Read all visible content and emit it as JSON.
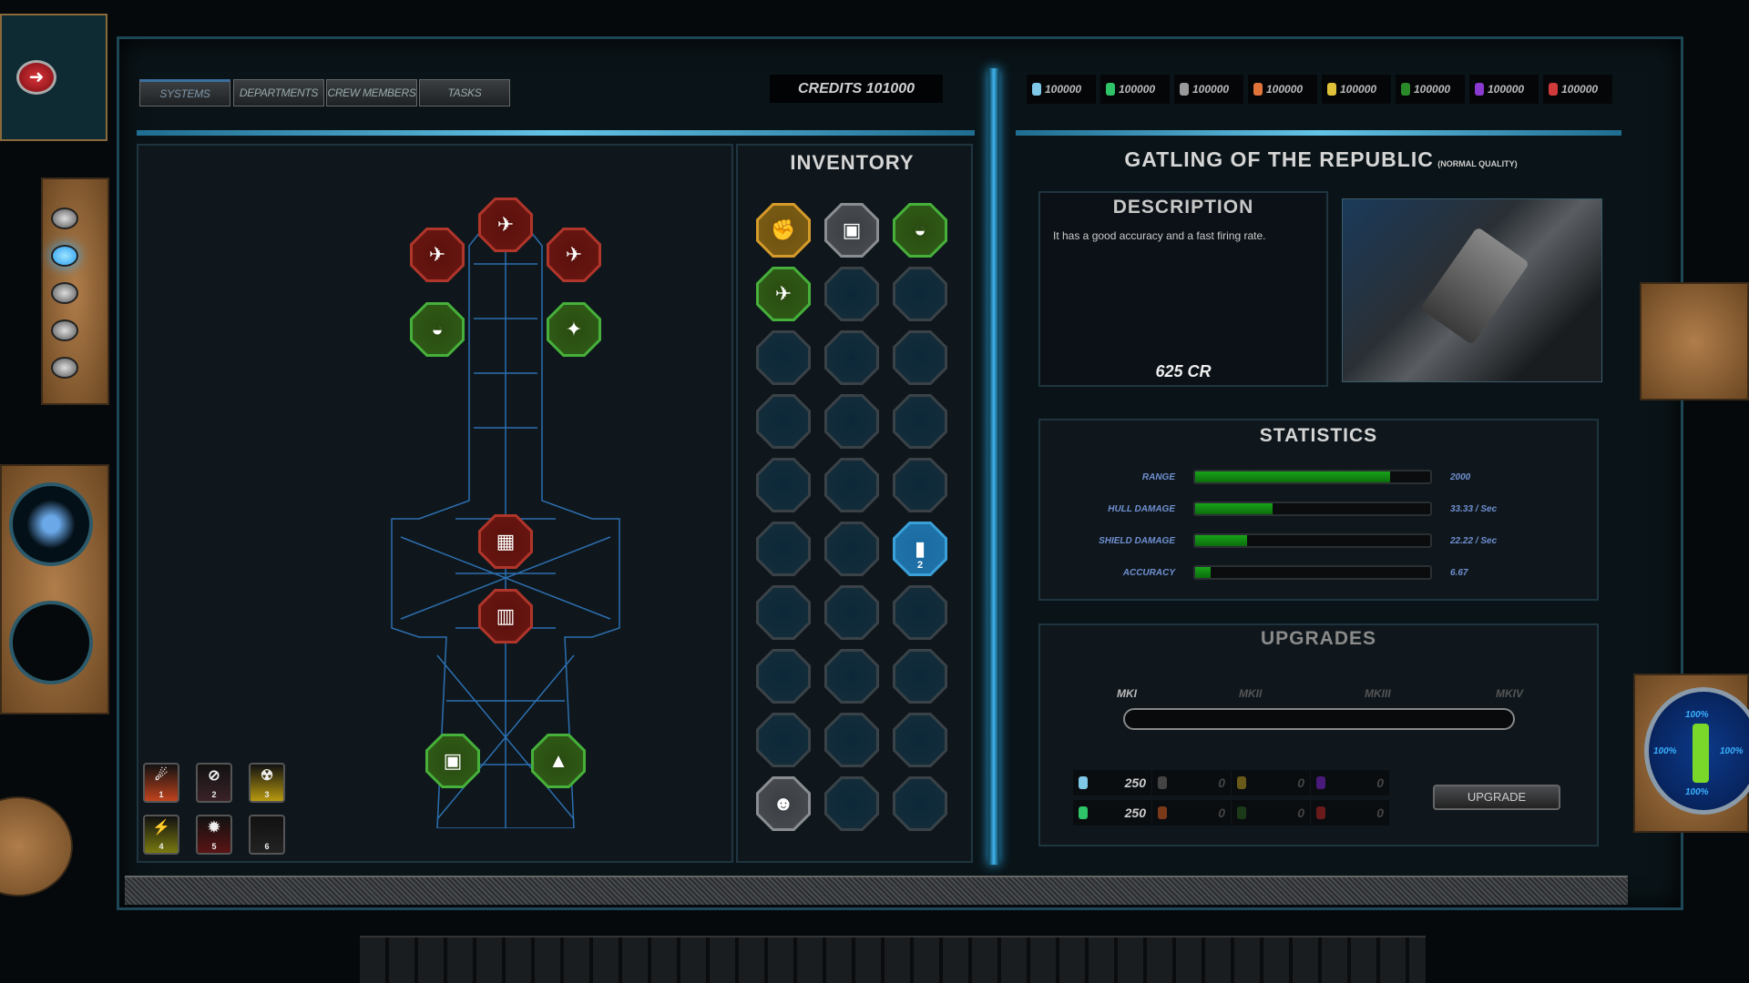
{
  "tabs": [
    {
      "label": "SYSTEMS",
      "active": true
    },
    {
      "label": "DEPARTMENTS"
    },
    {
      "label": "CREW MEMBERS"
    },
    {
      "label": "TASKS"
    }
  ],
  "credits": "CREDITS 101000",
  "resources": [
    {
      "icon": "crystal-icon",
      "color": "#7fc8e8",
      "amount": "100000"
    },
    {
      "icon": "droplet-icon",
      "color": "#2fc46a",
      "amount": "100000"
    },
    {
      "icon": "metal-bar-icon",
      "color": "#9a9a9a",
      "amount": "100000"
    },
    {
      "icon": "ore-icon",
      "color": "#e0743a",
      "amount": "100000"
    },
    {
      "icon": "gold-icon",
      "color": "#e0c23a",
      "amount": "100000"
    },
    {
      "icon": "plant-icon",
      "color": "#2a8a2a",
      "amount": "100000"
    },
    {
      "icon": "canister-icon",
      "color": "#8a3ad0",
      "amount": "100000"
    },
    {
      "icon": "gem-icon",
      "color": "#d03a3a",
      "amount": "100000"
    }
  ],
  "inventory": {
    "title": "INVENTORY",
    "items": [
      {
        "kind": "gold",
        "icon": "handcuffs-icon",
        "glyph": "✊"
      },
      {
        "kind": "grey",
        "icon": "crate-icon",
        "glyph": "▣"
      },
      {
        "kind": "green",
        "icon": "dome-icon",
        "glyph": "◒"
      },
      {
        "kind": "green",
        "icon": "turret-icon",
        "glyph": "✈"
      },
      {
        "kind": "empty"
      },
      {
        "kind": "empty"
      },
      {
        "kind": "empty"
      },
      {
        "kind": "empty"
      },
      {
        "kind": "empty"
      },
      {
        "kind": "empty"
      },
      {
        "kind": "empty"
      },
      {
        "kind": "empty"
      },
      {
        "kind": "empty"
      },
      {
        "kind": "empty"
      },
      {
        "kind": "empty"
      },
      {
        "kind": "empty"
      },
      {
        "kind": "empty"
      },
      {
        "kind": "blue",
        "icon": "canister-icon",
        "glyph": "▮",
        "count": "2"
      },
      {
        "kind": "empty"
      },
      {
        "kind": "empty"
      },
      {
        "kind": "empty"
      },
      {
        "kind": "empty"
      },
      {
        "kind": "empty"
      },
      {
        "kind": "empty"
      },
      {
        "kind": "empty"
      },
      {
        "kind": "empty"
      },
      {
        "kind": "empty"
      },
      {
        "kind": "grey",
        "icon": "crew-portrait-icon",
        "glyph": "☻"
      },
      {
        "kind": "empty"
      },
      {
        "kind": "empty"
      }
    ]
  },
  "ship_slots": [
    {
      "kind": "red",
      "icon": "gatling-icon",
      "glyph": "✈"
    },
    {
      "kind": "red",
      "icon": "gatling-icon",
      "glyph": "✈"
    },
    {
      "kind": "red",
      "icon": "gatling-icon",
      "glyph": "✈"
    },
    {
      "kind": "green",
      "icon": "dome-icon",
      "glyph": "◒"
    },
    {
      "kind": "green",
      "icon": "turret-icon",
      "glyph": "✦"
    },
    {
      "kind": "red",
      "icon": "armor-icon",
      "glyph": "▦"
    },
    {
      "kind": "red",
      "icon": "reactor-icon",
      "glyph": "▥"
    },
    {
      "kind": "green",
      "icon": "module-icon",
      "glyph": "▣"
    },
    {
      "kind": "green",
      "icon": "engine-icon",
      "glyph": "▲"
    }
  ],
  "abilities": [
    {
      "num": "1",
      "icon": "missile-barrage-icon",
      "glyph": "☄",
      "color": "#c0431e"
    },
    {
      "num": "2",
      "icon": "cloak-icon",
      "glyph": "⊘",
      "color": "#3a2228"
    },
    {
      "num": "3",
      "icon": "radiation-icon",
      "glyph": "☢",
      "color": "#b89a10"
    },
    {
      "num": "4",
      "icon": "energy-gear-icon",
      "glyph": "⚡",
      "color": "#7a7a10"
    },
    {
      "num": "5",
      "icon": "sawblade-icon",
      "glyph": "✹",
      "color": "#5a1414"
    },
    {
      "num": "6",
      "icon": "empty-slot-icon",
      "glyph": "",
      "color": "#222"
    }
  ],
  "item": {
    "name": "GATLING OF THE REPUBLIC",
    "quality": "(NORMAL QUALITY)",
    "description_title": "DESCRIPTION",
    "description": "It has a good accuracy and a fast firing rate.",
    "price": "625 CR"
  },
  "statistics": {
    "title": "STATISTICS",
    "rows": [
      {
        "label": "RANGE",
        "value": "2000",
        "fill": 0.83
      },
      {
        "label": "HULL DAMAGE",
        "value": "33.33 / Sec",
        "fill": 0.33
      },
      {
        "label": "SHIELD DAMAGE",
        "value": "22.22 / Sec",
        "fill": 0.22
      },
      {
        "label": "ACCURACY",
        "value": "6.67",
        "fill": 0.067
      }
    ]
  },
  "upgrades": {
    "title": "UPGRADES",
    "levels": [
      "MKI",
      "MKII",
      "MKIII",
      "MKIV"
    ],
    "current_level": "MKI",
    "button": "UPGRADE",
    "costs": [
      {
        "icon": "crystal-icon",
        "color": "#7fc8e8",
        "amount": "250"
      },
      {
        "icon": "metal-bar-icon",
        "color": "#444",
        "amount": "0"
      },
      {
        "icon": "gold-icon",
        "color": "#6a5a1a",
        "amount": "0"
      },
      {
        "icon": "canister-icon",
        "color": "#4a1a7a",
        "amount": "0"
      },
      {
        "icon": "droplet-icon",
        "color": "#2fc46a",
        "amount": "250"
      },
      {
        "icon": "ore-icon",
        "color": "#7a3a1a",
        "amount": "0"
      },
      {
        "icon": "plant-icon",
        "color": "#1a3a1a",
        "amount": "0"
      },
      {
        "icon": "gem-icon",
        "color": "#6a1a1a",
        "amount": "0"
      }
    ]
  },
  "ship_status": {
    "front": "100%",
    "left": "100%",
    "right": "100%",
    "rear": "100%"
  },
  "colors": {
    "accent": "#3fb5ee",
    "bar": "#19a31a",
    "stat_text": "#6f8fd0"
  }
}
